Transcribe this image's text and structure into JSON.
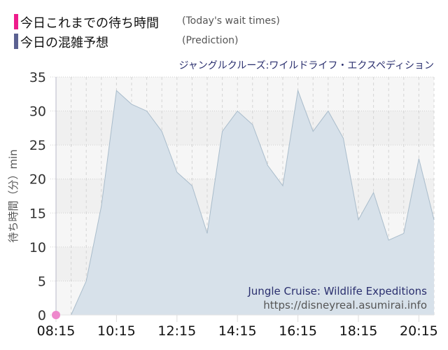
{
  "legend": {
    "items": [
      {
        "label_ja": "今日これまでの待ち時間",
        "label_en": "(Today's wait times)",
        "color": "#ee1c8c"
      },
      {
        "label_ja": "今日の混雑予想",
        "label_en": "(Prediction)",
        "color": "#5b6191"
      }
    ]
  },
  "attraction_title": "ジャングルクルーズ:ワイルドライフ・エクスペディション",
  "watermark": {
    "name": "Jungle Cruise: Wildlife Expeditions",
    "url": "https://disneyreal.asumirai.info"
  },
  "colors": {
    "area_fill": "#d7e1ea",
    "area_stroke": "#a9bccb",
    "actual_marker": "#ee88cc",
    "plot_bg_a": "#f6f6f6",
    "plot_bg_b": "#f0f0f0"
  },
  "chart_data": {
    "type": "area",
    "title": "ジャングルクルーズ:ワイルドライフ・エクスペディション",
    "xlabel": "",
    "ylabel": "待ち時間（分）min",
    "ylim": [
      0,
      35
    ],
    "yticks": [
      0,
      5,
      10,
      15,
      20,
      25,
      30,
      35
    ],
    "xtick_labels": [
      "08:15",
      "10:15",
      "12:15",
      "14:15",
      "16:15",
      "18:15",
      "20:15"
    ],
    "grid": true,
    "legend_position": "top-left",
    "series": [
      {
        "name": "今日の混雑予想 (Prediction)",
        "x": [
          "08:15",
          "08:45",
          "09:15",
          "09:45",
          "10:15",
          "10:45",
          "11:15",
          "11:45",
          "12:15",
          "12:45",
          "13:15",
          "13:45",
          "14:15",
          "14:45",
          "15:15",
          "15:45",
          "16:15",
          "16:45",
          "17:15",
          "17:45",
          "18:15",
          "18:45",
          "19:15",
          "19:45",
          "20:15",
          "20:45"
        ],
        "values": [
          0,
          0,
          5,
          16,
          33,
          31,
          30,
          27,
          21,
          19,
          12,
          27,
          30,
          28,
          22,
          19,
          33,
          27,
          30,
          26,
          14,
          18,
          11,
          12,
          23,
          14
        ]
      },
      {
        "name": "今日これまでの待ち時間 (Today's wait times)",
        "x": [
          "08:15"
        ],
        "values": [
          0
        ]
      }
    ]
  }
}
